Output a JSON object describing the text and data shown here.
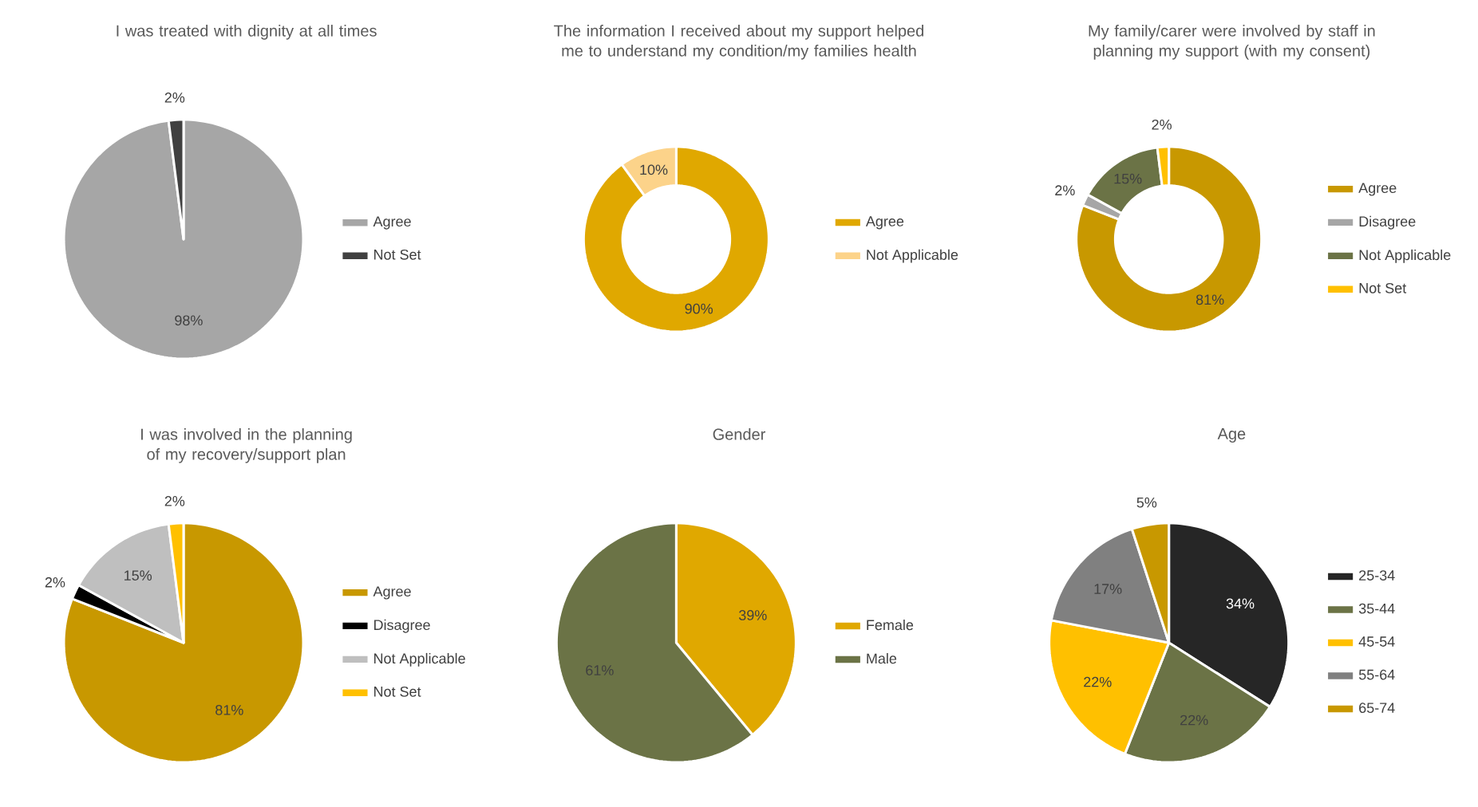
{
  "chart_data": [
    {
      "type": "pie",
      "title": "I was treated with dignity at all times",
      "categories": [
        "Agree",
        "Not Set"
      ],
      "values": [
        98,
        2
      ],
      "colors": [
        "#a6a6a6",
        "#404040"
      ],
      "value_labels": [
        "98%",
        "2%"
      ],
      "legend": "right"
    },
    {
      "type": "donut",
      "title": "The information I received about my support helped me to understand my condition/my families health",
      "categories": [
        "Agree",
        "Not Applicable"
      ],
      "values": [
        90,
        10
      ],
      "colors": [
        "#e0a800",
        "#fcd38a"
      ],
      "value_labels": [
        "90%",
        "10%"
      ],
      "legend": "right"
    },
    {
      "type": "donut",
      "title": "My family/carer were involved by staff in planning my support (with my consent)",
      "categories": [
        "Agree",
        "Disagree",
        "Not Applicable",
        "Not Set"
      ],
      "values": [
        81,
        2,
        15,
        2
      ],
      "colors": [
        "#c89800",
        "#a6a6a6",
        "#6b7346",
        "#ffc000"
      ],
      "value_labels": [
        "81%",
        "2%",
        "15%",
        "2%"
      ],
      "legend": "right"
    },
    {
      "type": "pie",
      "title": "I was involved in the planning of my recovery/support plan",
      "categories": [
        "Agree",
        "Disagree",
        "Not Applicable",
        "Not Set"
      ],
      "values": [
        81,
        2,
        15,
        2
      ],
      "colors": [
        "#c89800",
        "#000000",
        "#bfbfbf",
        "#ffc000"
      ],
      "value_labels": [
        "81%",
        "2%",
        "15%",
        "2%"
      ],
      "legend": "right"
    },
    {
      "type": "pie",
      "title": "Gender",
      "categories": [
        "Female",
        "Male"
      ],
      "values": [
        39,
        61
      ],
      "colors": [
        "#e0a800",
        "#6b7346"
      ],
      "value_labels": [
        "39%",
        "61%"
      ],
      "legend": "right"
    },
    {
      "type": "pie",
      "title": "Age",
      "categories": [
        "25-34",
        "35-44",
        "45-54",
        "55-64",
        "65-74"
      ],
      "values": [
        34,
        22,
        22,
        17,
        5
      ],
      "colors": [
        "#262626",
        "#6b7346",
        "#ffc000",
        "#808080",
        "#c89800"
      ],
      "value_labels": [
        "34%",
        "22%",
        "22%",
        "17%",
        "5%"
      ],
      "legend": "right"
    }
  ]
}
